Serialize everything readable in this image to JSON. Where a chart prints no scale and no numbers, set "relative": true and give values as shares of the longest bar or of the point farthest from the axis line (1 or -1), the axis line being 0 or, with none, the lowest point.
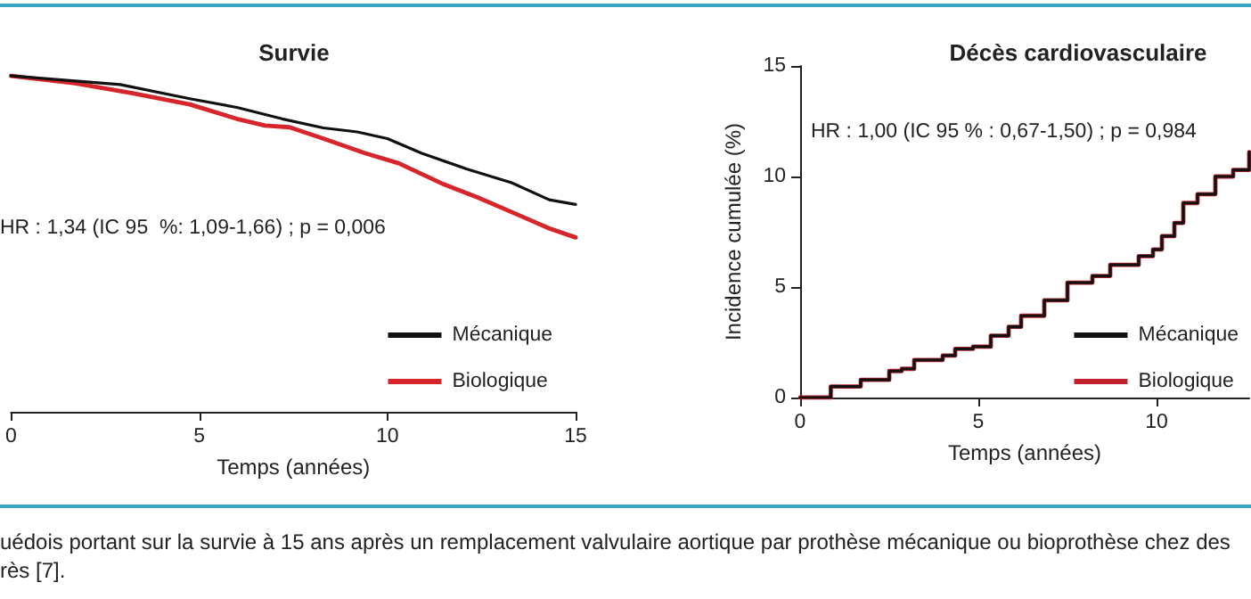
{
  "chart_data": [
    {
      "type": "line",
      "title": "Survie",
      "xlabel": "Temps (années)",
      "relative": true,
      "xlim": [
        0,
        15
      ],
      "xticks": [
        0,
        5,
        10,
        15
      ],
      "grid": false,
      "legend": "bottom right",
      "marker": "none",
      "line_style": "solid",
      "tick_labels": "x",
      "annotations": [
        "HR : 1,34 (IC 95  %: 1,09-1,66) ; p = 0,006",
        "uédois portant sur la survie à 15 ans après un remplacement valvulaire aortique par prothèse mécanique ou bioprothèse chez des",
        "rès [7]."
      ],
      "series": [
        {
          "name": "Mécanique",
          "color": "#111111",
          "x": [
            0,
            2.9,
            4.75,
            6,
            7.2,
            8.3,
            9.2,
            10,
            10.9,
            12.1,
            13.3,
            14.3,
            15
          ],
          "values": [
            1.0,
            0.974,
            0.932,
            0.906,
            0.872,
            0.845,
            0.833,
            0.813,
            0.77,
            0.723,
            0.682,
            0.631,
            0.617
          ]
        },
        {
          "name": "Biologique",
          "color": "#d7262b",
          "x": [
            0,
            1.7,
            3.2,
            4.75,
            6,
            6.75,
            7.4,
            8.3,
            9.4,
            10.3,
            11.5,
            12.4,
            13.6,
            14.3,
            15
          ],
          "values": [
            1.0,
            0.978,
            0.949,
            0.915,
            0.872,
            0.852,
            0.847,
            0.813,
            0.77,
            0.74,
            0.677,
            0.638,
            0.58,
            0.546,
            0.519
          ]
        }
      ]
    },
    {
      "type": "step",
      "title": "Décès cardiovasculaire",
      "xlabel": "Temps (années)",
      "ylabel": "Incidence cumulée (%)",
      "xlim": [
        0,
        12.6
      ],
      "xticks": [
        0,
        5,
        10
      ],
      "ylim": [
        0,
        15
      ],
      "yticks": [
        0,
        5,
        10,
        15
      ],
      "grid": false,
      "legend": "bottom right",
      "marker": "none",
      "line_style": "solid",
      "annotations": [
        "HR : 1,00 (IC 95 % : 0,67-1,50) ; p = 0,984"
      ],
      "x": [
        0,
        0.86,
        1.7,
        2.5,
        2.85,
        3.2,
        4.0,
        4.35,
        4.85,
        5.35,
        5.85,
        6.2,
        6.85,
        7.5,
        8.2,
        8.7,
        9.5,
        9.9,
        10.15,
        10.5,
        10.75,
        11.15,
        11.65,
        12.15,
        12.6
      ],
      "series": [
        {
          "name": "Mécanique",
          "color": "#111111",
          "values": [
            0,
            0.5,
            0.8,
            1.2,
            1.3,
            1.7,
            1.9,
            2.2,
            2.3,
            2.8,
            3.2,
            3.7,
            4.4,
            5.2,
            5.5,
            6.0,
            6.4,
            6.7,
            7.3,
            7.9,
            8.8,
            9.2,
            10.0,
            10.3,
            11.1
          ]
        },
        {
          "name": "Biologique",
          "color": "#c0202a",
          "values": [
            0,
            0.5,
            0.8,
            1.2,
            1.3,
            1.7,
            1.9,
            2.2,
            2.3,
            2.8,
            3.2,
            3.7,
            4.4,
            5.2,
            5.5,
            6.0,
            6.4,
            6.7,
            7.3,
            7.9,
            8.8,
            9.2,
            10.0,
            10.3,
            11.1
          ]
        }
      ]
    }
  ]
}
